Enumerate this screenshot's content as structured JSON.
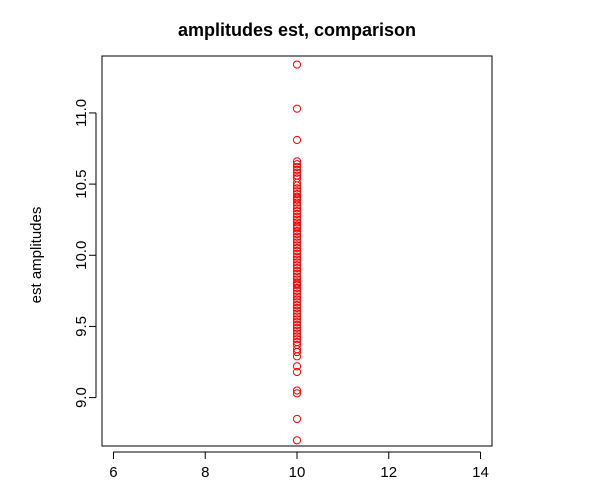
{
  "chart_data": {
    "type": "scatter",
    "title": "amplitudes est, comparison",
    "xlabel": "",
    "ylabel": "est amplitudes",
    "xlim": [
      5.75,
      14.25
    ],
    "ylim": [
      8.66,
      11.4
    ],
    "xticks": [
      6,
      8,
      10,
      12,
      14
    ],
    "xtick_labels": [
      "6",
      "8",
      "10",
      "12",
      "14"
    ],
    "yticks": [
      9.0,
      9.5,
      10.0,
      10.5,
      11.0
    ],
    "ytick_labels": [
      "9.0",
      "9.5",
      "10.0",
      "10.5",
      "11.0"
    ],
    "grid": false,
    "marker": "open-circle",
    "marker_color": "#ff0000",
    "series": [
      {
        "x": [
          10,
          10,
          10,
          10,
          10,
          10,
          10,
          10,
          10,
          10,
          10,
          10,
          10,
          10,
          10,
          10,
          10,
          10,
          10,
          10,
          10,
          10,
          10,
          10,
          10,
          10,
          10,
          10,
          10,
          10,
          10,
          10,
          10,
          10,
          10,
          10,
          10,
          10,
          10,
          10,
          10,
          10,
          10,
          10,
          10,
          10,
          10,
          10,
          10,
          10,
          10,
          10,
          10,
          10,
          10,
          10,
          10,
          10,
          10,
          10,
          10,
          10,
          10,
          10,
          10,
          10,
          10,
          10,
          10,
          10,
          10,
          10,
          10,
          10,
          10,
          10,
          10,
          10,
          10,
          10
        ],
        "y": [
          11.34,
          11.03,
          10.81,
          10.66,
          10.64,
          10.62,
          10.6,
          10.58,
          10.56,
          10.54,
          10.51,
          10.49,
          10.47,
          10.45,
          10.43,
          10.41,
          10.39,
          10.37,
          10.35,
          10.33,
          10.31,
          10.29,
          10.27,
          10.25,
          10.23,
          10.21,
          10.19,
          10.17,
          10.15,
          10.13,
          10.11,
          10.09,
          10.07,
          10.05,
          10.03,
          10.01,
          9.99,
          9.97,
          9.95,
          9.93,
          9.91,
          9.89,
          9.87,
          9.85,
          9.83,
          9.81,
          9.79,
          9.77,
          9.75,
          9.73,
          9.71,
          9.69,
          9.67,
          9.65,
          9.63,
          9.61,
          9.59,
          9.57,
          9.55,
          9.53,
          9.51,
          9.49,
          9.47,
          9.45,
          9.43,
          9.41,
          9.39,
          9.37,
          9.34,
          9.32,
          9.29,
          9.22,
          9.18,
          9.05,
          9.03,
          8.85,
          8.7,
          10.4,
          10.2,
          9.8
        ]
      }
    ]
  }
}
